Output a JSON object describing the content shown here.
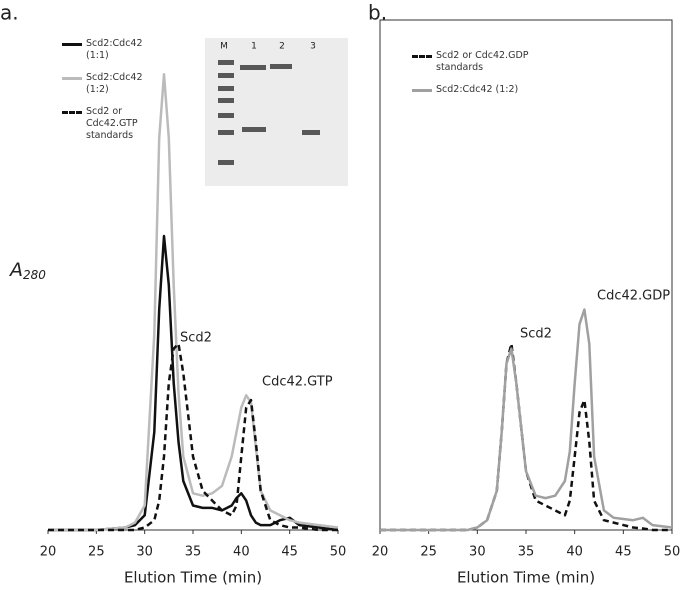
{
  "chart_data": [
    {
      "type": "line",
      "panel": "a.",
      "ylabel_main": "A",
      "ylabel_sub": "280",
      "xlabel": "Elution Time (min)",
      "x": [
        20,
        25,
        28,
        29,
        30,
        31,
        31.5,
        32,
        32.5,
        33,
        33.5,
        34,
        35,
        36,
        37,
        38,
        39,
        39.5,
        40,
        40.5,
        41,
        41.5,
        42,
        43,
        44,
        45,
        46,
        48,
        50
      ],
      "series": [
        {
          "name": "Scd2:Cdc42 (1:1)",
          "color": "#111111",
          "dash": "solid",
          "values": [
            0,
            0,
            0.005,
            0.01,
            0.03,
            0.2,
            0.45,
            0.6,
            0.5,
            0.3,
            0.18,
            0.1,
            0.05,
            0.045,
            0.045,
            0.04,
            0.05,
            0.065,
            0.075,
            0.06,
            0.03,
            0.015,
            0.01,
            0.01,
            0.02,
            0.025,
            0.01,
            0.005,
            0
          ]
        },
        {
          "name": "Scd2:Cdc42 (1:2)",
          "color": "#bbbbbb",
          "dash": "solid",
          "values": [
            0,
            0,
            0.005,
            0.015,
            0.05,
            0.4,
            0.8,
            0.93,
            0.8,
            0.5,
            0.28,
            0.15,
            0.075,
            0.07,
            0.075,
            0.09,
            0.15,
            0.2,
            0.25,
            0.275,
            0.26,
            0.17,
            0.08,
            0.04,
            0.03,
            0.02,
            0.015,
            0.01,
            0.005
          ]
        },
        {
          "name": "Scd2 or Cdc42.GTP standards",
          "color": "#111111",
          "dash": "dashed",
          "values": [
            0,
            0,
            0,
            0,
            0.005,
            0.02,
            0.06,
            0.15,
            0.3,
            0.37,
            0.38,
            0.32,
            0.15,
            0.08,
            0.06,
            0.04,
            0.03,
            0.05,
            0.15,
            0.25,
            0.265,
            0.18,
            0.08,
            0.02,
            0.01,
            0.005,
            0.005,
            0,
            0
          ]
        }
      ],
      "annotations": [
        "Scd2",
        "Cdc42.GTP"
      ],
      "xlim": [
        20,
        50
      ],
      "xticks": [
        20,
        25,
        30,
        35,
        40,
        45,
        50
      ],
      "ylim": [
        0,
        1
      ],
      "frame": false,
      "gel_lanes": [
        "M",
        "1",
        "2",
        "3"
      ]
    },
    {
      "type": "line",
      "panel": "b.",
      "xlabel": "Elution Time (min)",
      "x": [
        20,
        25,
        29,
        30,
        31,
        32,
        32.5,
        33,
        33.5,
        34,
        35,
        36,
        37,
        38,
        39,
        39.5,
        40,
        40.5,
        41,
        41.5,
        42,
        43,
        44,
        46,
        47,
        48,
        50
      ],
      "series": [
        {
          "name": "Scd2 or Cdc42.GDP standards",
          "color": "#111111",
          "dash": "dashed",
          "values": [
            0,
            0,
            0,
            0.005,
            0.02,
            0.08,
            0.2,
            0.34,
            0.38,
            0.3,
            0.12,
            0.06,
            0.05,
            0.04,
            0.03,
            0.06,
            0.15,
            0.24,
            0.265,
            0.18,
            0.06,
            0.02,
            0.015,
            0.005,
            0.003,
            0,
            0
          ]
        },
        {
          "name": "Scd2:Cdc42 (1:2)",
          "color": "#a0a0a0",
          "dash": "solid",
          "values": [
            0,
            0,
            0,
            0.005,
            0.02,
            0.08,
            0.2,
            0.34,
            0.37,
            0.3,
            0.12,
            0.07,
            0.065,
            0.07,
            0.1,
            0.16,
            0.3,
            0.42,
            0.45,
            0.38,
            0.15,
            0.04,
            0.025,
            0.02,
            0.025,
            0.01,
            0.005
          ]
        }
      ],
      "annotations": [
        "Scd2",
        "Cdc42.GDP"
      ],
      "xlim": [
        20,
        50
      ],
      "xticks": [
        20,
        25,
        30,
        35,
        40,
        45,
        50
      ],
      "ylim": [
        0,
        1
      ],
      "frame": true
    }
  ]
}
